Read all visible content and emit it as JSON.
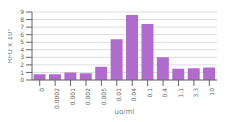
{
  "chart_data": {
    "type": "bar",
    "categories": [
      "0",
      "0.0002",
      "0.001",
      "0.002",
      "0.005",
      "0.01",
      "0.04",
      "0.1",
      "0.4",
      "1.1",
      "3.3",
      "10"
    ],
    "values": [
      0.75,
      0.75,
      1.0,
      0.9,
      1.75,
      5.4,
      8.6,
      7.4,
      3.0,
      1.5,
      1.55,
      1.65
    ],
    "color": "#b06ccc",
    "xlabel": "ug/ml",
    "ylabel": "RFU x 10³",
    "ylim": [
      0,
      9
    ],
    "yticks": [
      0,
      1,
      2,
      3,
      4,
      5,
      6,
      7,
      8,
      9
    ],
    "grid": true
  }
}
